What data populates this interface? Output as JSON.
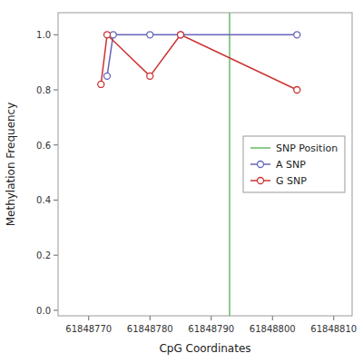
{
  "chart_data": {
    "type": "line",
    "xlabel": "CpG Coordinates",
    "ylabel": "Methylation Frequency",
    "series": [
      {
        "name": "SNP Position",
        "type": "vline",
        "color": "#66bb66",
        "x": [
          61848793
        ]
      },
      {
        "name": "A SNP",
        "type": "line",
        "color": "#6666bb",
        "marker": "circle",
        "x": [
          61848773,
          61848774,
          61848780,
          61848785,
          61848804
        ],
        "values": [
          0.85,
          1.0,
          1.0,
          1.0,
          1.0
        ]
      },
      {
        "name": "G SNP",
        "type": "line",
        "color": "#cc3333",
        "marker": "circle",
        "x": [
          61848772,
          61848773,
          61848780,
          61848785,
          61848804
        ],
        "values": [
          0.82,
          1.0,
          0.85,
          1.0,
          0.8
        ]
      }
    ],
    "xlim": [
      61848765,
      61848813
    ],
    "ylim": [
      -0.02,
      1.08
    ],
    "xticks": [
      61848770,
      61848780,
      61848790,
      61848800,
      61848810
    ],
    "yticks": [
      {
        "value": 0,
        "label": "0.0"
      },
      0.2,
      0.4,
      0.6,
      0.8,
      {
        "value": 1,
        "label": "1.0"
      }
    ],
    "grid": false,
    "legend": "center right"
  }
}
